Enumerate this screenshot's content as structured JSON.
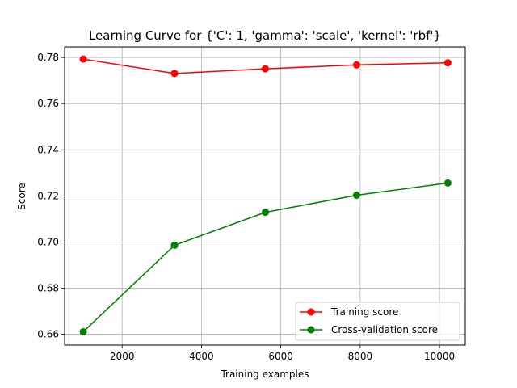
{
  "chart_data": {
    "type": "line",
    "title": "Learning Curve for {'C': 1, 'gamma': 'scale', 'kernel': 'rbf'}",
    "xlabel": "Training examples",
    "ylabel": "Score",
    "xlim": [
      550,
      10650
    ],
    "ylim": [
      0.6553,
      0.7846
    ],
    "x_ticks": [
      2000,
      4000,
      6000,
      8000,
      10000
    ],
    "y_ticks": [
      0.66,
      0.68,
      0.7,
      0.72,
      0.74,
      0.76,
      0.78
    ],
    "y_tick_labels": [
      "0.66",
      "0.68",
      "0.70",
      "0.72",
      "0.74",
      "0.76",
      "0.78"
    ],
    "grid": true,
    "legend_position": "lower-right",
    "x": [
      1020,
      3320,
      5610,
      7910,
      10210
    ],
    "series": [
      {
        "name": "Training score",
        "color": "#ff0000",
        "marker": "circle",
        "values": [
          0.7793,
          0.7731,
          0.7751,
          0.7768,
          0.7777
        ]
      },
      {
        "name": "Cross-validation score",
        "color": "#008000",
        "marker": "circle",
        "values": [
          0.6611,
          0.6986,
          0.7129,
          0.7203,
          0.7256
        ]
      }
    ]
  }
}
